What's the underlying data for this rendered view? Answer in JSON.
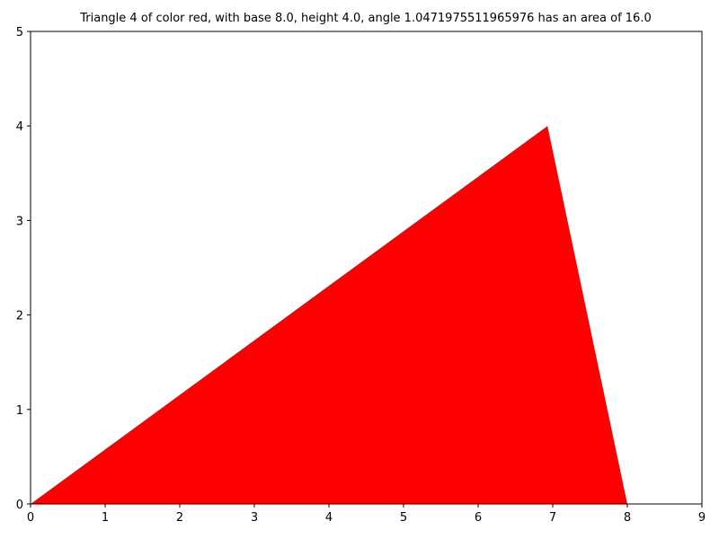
{
  "chart_data": {
    "type": "area",
    "title": "Triangle 4 of color red, with base 8.0, height 4.0, angle 1.0471975511965976 has an area of 16.0",
    "xlabel": "",
    "ylabel": "",
    "xlim": [
      0,
      9
    ],
    "ylim": [
      0,
      5
    ],
    "xticks": [
      "0",
      "1",
      "2",
      "3",
      "4",
      "5",
      "6",
      "7",
      "8",
      "9"
    ],
    "yticks": [
      "0",
      "1",
      "2",
      "3",
      "4",
      "5"
    ],
    "grid": false,
    "series": [
      {
        "points": [
          [
            0,
            0
          ],
          [
            6.93,
            4.0
          ],
          [
            8.0,
            0
          ]
        ],
        "color": "#ff0000"
      }
    ]
  }
}
